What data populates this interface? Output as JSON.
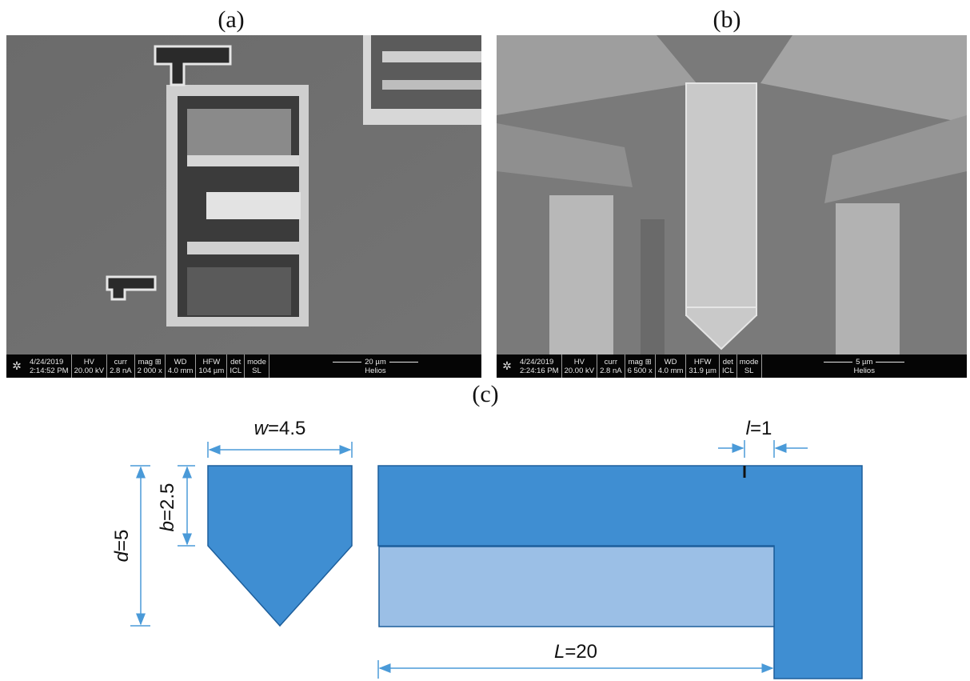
{
  "figure": {
    "panel_a_label": "(a)",
    "panel_b_label": "(b)",
    "panel_c_label": "(c)"
  },
  "sem_a": {
    "date": "4/24/2019",
    "time": "2:14:52 PM",
    "hv_label": "HV",
    "hv_value": "20.00 kV",
    "curr_label": "curr",
    "curr_value": "2.8 nA",
    "mag_label": "mag ⊞",
    "mag_value": "2 000 x",
    "wd_label": "WD",
    "wd_value": "4.0 mm",
    "hfw_label": "HFW",
    "hfw_value": "104 µm",
    "det_label": "det",
    "det_value": "ICL",
    "mode_label": "mode",
    "mode_value": "SL",
    "scale_label": "20 µm",
    "instrument": "Helios"
  },
  "sem_b": {
    "date": "4/24/2019",
    "time": "2:24:16 PM",
    "hv_label": "HV",
    "hv_value": "20.00 kV",
    "curr_label": "curr",
    "curr_value": "2.8 nA",
    "mag_label": "mag ⊞",
    "mag_value": "6 500 x",
    "wd_label": "WD",
    "wd_value": "4.0 mm",
    "hfw_label": "HFW",
    "hfw_value": "31.9 µm",
    "det_label": "det",
    "det_value": "ICL",
    "mode_label": "mode",
    "mode_value": "SL",
    "scale_label": "5 µm",
    "instrument": "Helios"
  },
  "diagram": {
    "w_label": "w=4.5",
    "b_label": "b=2.5",
    "d_label": "d=5",
    "l_label": "l=1",
    "L_label": "L=20",
    "colors": {
      "dark_blue": "#3f8ed2",
      "light_blue": "#9bbfe6",
      "outline": "#1d5f9c",
      "dim_line": "#4a9ad8"
    }
  }
}
